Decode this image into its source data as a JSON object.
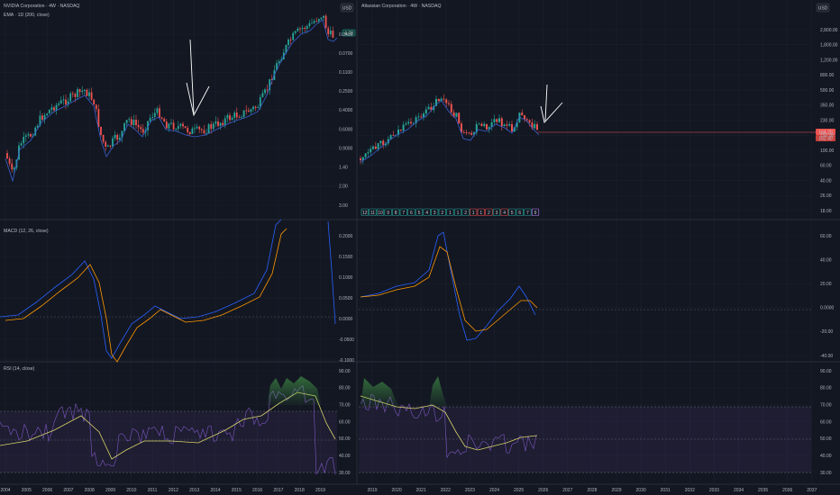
{
  "left": {
    "symbol_title": "NVIDIA Corporation · 4W · NASDAQ",
    "ema_title": "EMA · 1D (200, close)",
    "currency": "USD",
    "price_tag": "4.78",
    "price_axis": [
      "0.0400",
      "0.0700",
      "0.1100",
      "0.2500",
      "0.4000",
      "0.6000",
      "0.9000",
      "1.40",
      "2.00",
      "3.00"
    ],
    "macd_title": "MACD (12, 26, close)",
    "macd_axis": [
      "0.2000",
      "0.1500",
      "0.1000",
      "0.0500",
      "0.0000",
      "-0.0500",
      "-0.1000"
    ],
    "rsi_title": "RSI (14, close)",
    "rsi_axis": [
      "90.00",
      "80.00",
      "70.00",
      "60.00",
      "50.00",
      "40.00",
      "30.00"
    ],
    "years": [
      "2004",
      "2005",
      "2006",
      "2007",
      "2008",
      "2009",
      "2010",
      "2011",
      "2012",
      "2013",
      "2014",
      "2015",
      "2016",
      "2017",
      "2018",
      "2019"
    ]
  },
  "right": {
    "symbol_title": "Atlassian Corporation · 4W · NASDAQ",
    "currency": "USD",
    "price_tags": [
      "164.20",
      "162.40"
    ],
    "price_axis": [
      "2,800.00",
      "1,800.00",
      "1,200.00",
      "800.00",
      "500.00",
      "350.00",
      "230.00",
      "150.00",
      "100.00",
      "60.00",
      "40.00",
      "26.00",
      "18.00"
    ],
    "macd_axis": [
      "60.00",
      "40.00",
      "20.00",
      "0.0000",
      "-20.00",
      "-40.00"
    ],
    "rsi_axis": [
      "90.00",
      "80.00",
      "70.00",
      "60.00",
      "50.00",
      "40.00",
      "30.00"
    ],
    "years": [
      "2019",
      "2020",
      "2021",
      "2022",
      "2023",
      "2024",
      "2025",
      "2026",
      "2027",
      "2028",
      "2029",
      "2030",
      "2031",
      "2032",
      "2033",
      "2034",
      "2035",
      "2036",
      "2037"
    ],
    "markers": [
      "12",
      "11",
      "10",
      "9",
      "8",
      "7",
      "6",
      "5",
      "4",
      "3",
      "2",
      "1",
      "1",
      "2",
      "1",
      "1",
      "2",
      "3",
      "4",
      "5",
      "6",
      "7",
      "9"
    ]
  },
  "colors": {
    "background": "#131722",
    "up": "#26a69a",
    "down": "#ef5350",
    "ema": "#3a5fcd",
    "macd": "#2962ff",
    "signal": "#ff9800",
    "rsi": "#7e57c2",
    "rsi_ma": "#d8d36a",
    "grid": "#1f2330",
    "annotation": "#ffffff"
  },
  "annotations": [
    "arrow-down-left",
    "arrow-down-right"
  ]
}
